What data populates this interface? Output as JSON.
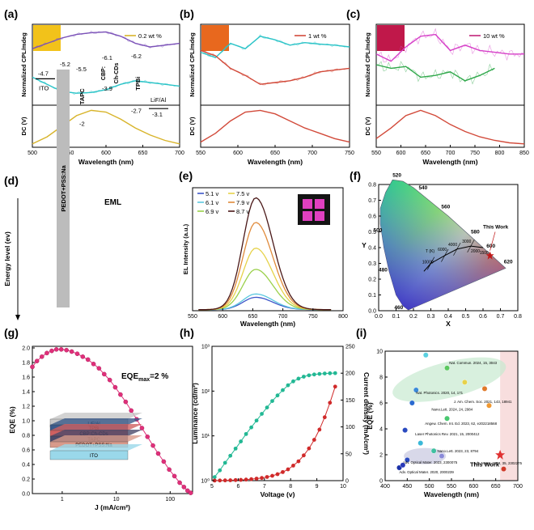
{
  "panel_labels": [
    "(a)",
    "(b)",
    "(c)",
    "(d)",
    "(e)",
    "(f)",
    "(g)",
    "(h)",
    "(i)"
  ],
  "colors": {
    "purple": "#7b52b8",
    "cyan": "#2cc4c8",
    "gold": "#d8b42a",
    "red": "#d24a3a",
    "magenta": "#d640c8",
    "green": "#2fa84a",
    "teal": "#22b894",
    "pink": "#e0307a"
  },
  "chart_data": [
    {
      "id": "a",
      "type": "line",
      "ylabel_top": "Normalized CPL/mdeg",
      "ylabel_bottom": "DC (V)",
      "xlabel": "Wavelength (nm)",
      "xlim": [
        500,
        700
      ],
      "xticks": [
        "500",
        "550",
        "600",
        "650",
        "700"
      ],
      "swatch_color": "#f2c21a",
      "series": [
        {
          "name": "0.2 wt %",
          "role": "legend",
          "color": "#d8b42a"
        },
        {
          "role": "cpl-positive",
          "color": "#7b52b8",
          "x": [
            500,
            520,
            540,
            560,
            580,
            600,
            620,
            640,
            660,
            680,
            700
          ],
          "y": [
            0.45,
            0.6,
            0.75,
            0.85,
            0.9,
            0.92,
            0.8,
            0.6,
            0.5,
            0.55,
            0.6
          ]
        },
        {
          "role": "cpl-negative",
          "color": "#2cc4c8",
          "x": [
            500,
            520,
            540,
            560,
            580,
            600,
            620,
            640,
            660,
            680,
            700
          ],
          "y": [
            -0.35,
            -0.55,
            -0.75,
            -0.8,
            -0.78,
            -0.7,
            -0.55,
            -0.45,
            -0.5,
            -0.55,
            -0.6
          ]
        },
        {
          "role": "dc",
          "color": "#d8b42a",
          "x": [
            500,
            520,
            540,
            560,
            580,
            600,
            620,
            640,
            660,
            680,
            700
          ],
          "y": [
            0.05,
            0.25,
            0.55,
            0.85,
            1.0,
            0.95,
            0.75,
            0.5,
            0.3,
            0.15,
            0.05
          ]
        }
      ]
    },
    {
      "id": "b",
      "type": "line",
      "ylabel_top": "Normalized CPL/mdeg",
      "ylabel_bottom": "DC (V)",
      "xlabel": "Wavelength (nm)",
      "xlim": [
        550,
        750
      ],
      "xticks": [
        "550",
        "600",
        "650",
        "700",
        "750"
      ],
      "swatch_color": "#e8681e",
      "series": [
        {
          "name": "1 wt %",
          "role": "legend",
          "color": "#d24a3a"
        },
        {
          "role": "cpl-positive",
          "color": "#2cc4c8",
          "x": [
            550,
            570,
            590,
            610,
            630,
            650,
            670,
            690,
            710,
            730,
            750
          ],
          "y": [
            0.35,
            0.2,
            0.6,
            0.45,
            0.8,
            0.7,
            0.55,
            0.62,
            0.58,
            0.55,
            0.5
          ]
        },
        {
          "role": "cpl-negative",
          "color": "#d24a3a",
          "x": [
            550,
            570,
            590,
            610,
            630,
            650,
            670,
            690,
            710,
            730,
            750
          ],
          "y": [
            0.4,
            0.25,
            -0.1,
            -0.3,
            -0.55,
            -0.5,
            -0.45,
            -0.35,
            -0.2,
            -0.15,
            -0.1
          ]
        },
        {
          "role": "dc",
          "color": "#d24a3a",
          "x": [
            550,
            570,
            590,
            610,
            630,
            650,
            670,
            690,
            710,
            730,
            750
          ],
          "y": [
            0.1,
            0.35,
            0.7,
            0.95,
            1.0,
            0.9,
            0.7,
            0.5,
            0.35,
            0.2,
            0.1
          ]
        }
      ]
    },
    {
      "id": "c",
      "type": "line",
      "ylabel_top": "Normalized CPL/mdeg",
      "ylabel_bottom": "DC (V)",
      "xlabel": "Wavelength (nm)",
      "xlim": [
        550,
        850
      ],
      "xticks": [
        "550",
        "600",
        "650",
        "700",
        "750",
        "800",
        "850"
      ],
      "swatch_color": "#c0184a",
      "series": [
        {
          "name": "10 wt %",
          "role": "legend",
          "color": "#c2247a"
        },
        {
          "role": "cpl-positive",
          "color": "#d640c8",
          "x": [
            550,
            580,
            610,
            640,
            670,
            700,
            730,
            760,
            790,
            820,
            850
          ],
          "y": [
            0.3,
            0.1,
            0.5,
            0.8,
            0.85,
            0.4,
            0.55,
            0.4,
            0.35,
            0.3,
            0.3
          ]
        },
        {
          "role": "cpl-negative",
          "color": "#2fa84a",
          "x": [
            550,
            580,
            610,
            640,
            670,
            700,
            730,
            760,
            790
          ],
          "y": [
            0.0,
            -0.1,
            -0.05,
            -0.35,
            -0.3,
            -0.2,
            -0.45,
            -0.3,
            -0.1
          ]
        },
        {
          "role": "dc",
          "color": "#d24a3a",
          "x": [
            550,
            580,
            610,
            640,
            670,
            700,
            730,
            760,
            790,
            820,
            850
          ],
          "y": [
            0.2,
            0.5,
            0.85,
            1.0,
            0.85,
            0.6,
            0.4,
            0.25,
            0.15,
            0.08,
            0.05
          ]
        }
      ]
    },
    {
      "id": "d",
      "type": "diagram",
      "ylabel": "Energy level (ev)",
      "layers": [
        {
          "name": "ITO",
          "top": "-4.7"
        },
        {
          "name": "PEDOT+PSS:Na",
          "top": "-5.2"
        },
        {
          "name": "TAPC",
          "top": "-2",
          "bottom": "-5.5"
        },
        {
          "name": "EML",
          "top": "-3.9",
          "bottom": "-6.1"
        },
        {
          "name": "CBP:",
          "part": "EML"
        },
        {
          "name": "Ch-CDs",
          "part": "EML"
        },
        {
          "name": "TPBi",
          "top": "-2.7",
          "bottom": "-6.2"
        },
        {
          "name": "LiF/Al",
          "top": "-3.1"
        }
      ]
    },
    {
      "id": "e",
      "type": "line",
      "ylabel": "EL Intensity (a.u.)",
      "xlabel": "Wavelength (nm)",
      "xlim": [
        550,
        800
      ],
      "xticks": [
        "550",
        "600",
        "650",
        "700",
        "750",
        "800"
      ],
      "peak": 655,
      "series": [
        {
          "name": "5.1 v",
          "color": "#3d56c8",
          "peak_height": 0.11
        },
        {
          "name": "6.1 v",
          "color": "#5cc8e0",
          "peak_height": 0.14
        },
        {
          "name": "6.9 v",
          "color": "#9ad04a",
          "peak_height": 0.36
        },
        {
          "name": "7.5 v",
          "color": "#e6d24a",
          "peak_height": 0.55
        },
        {
          "name": "7.9 v",
          "color": "#e08a3a",
          "peak_height": 0.78
        },
        {
          "name": "8.7 v",
          "color": "#4a1818",
          "peak_height": 1.0
        }
      ]
    },
    {
      "id": "f",
      "type": "scatter",
      "xlabel": "X",
      "ylabel": "Y",
      "xlim": [
        0.0,
        0.8
      ],
      "ylim": [
        0.0,
        0.8
      ],
      "xticks": [
        "0.0",
        "0.1",
        "0.2",
        "0.3",
        "0.4",
        "0.5",
        "0.6",
        "0.7",
        "0.8"
      ],
      "yticks": [
        "0.0",
        "0.1",
        "0.2",
        "0.3",
        "0.4",
        "0.5",
        "0.6",
        "0.7",
        "0.8"
      ],
      "locus_labels": [
        "520",
        "540",
        "560",
        "580",
        "600",
        "620",
        "500",
        "480",
        "460"
      ],
      "cct_labels": [
        "T (K)",
        "10000",
        "6000",
        "4000",
        "3000",
        "2000",
        "1500"
      ],
      "point": {
        "name": "This Work",
        "x": 0.64,
        "y": 0.35,
        "color": "#c01818"
      }
    },
    {
      "id": "g",
      "type": "scatter",
      "xlabel": "J (mA/cm²)",
      "ylabel": "EQE (%)",
      "xscale": "log",
      "xticks": [
        "1",
        "10",
        "100"
      ],
      "ylim": [
        0.0,
        2.0
      ],
      "yticks": [
        "0.0",
        "0.2",
        "0.4",
        "0.6",
        "0.8",
        "1.0",
        "1.2",
        "1.4",
        "1.6",
        "1.8",
        "2.0"
      ],
      "annotation": "EQE",
      "annotation_sub": "max",
      "annotation_tail": "=2 %",
      "color": "#e0307a",
      "x": [
        0.28,
        0.34,
        0.42,
        0.52,
        0.64,
        0.78,
        0.96,
        1.2,
        1.5,
        1.9,
        2.4,
        3.0,
        3.8,
        4.8,
        6,
        7.6,
        9.6,
        12,
        15,
        19,
        24,
        30,
        38,
        48,
        60,
        76,
        96,
        120,
        150,
        180,
        210,
        240
      ],
      "y": [
        1.74,
        1.82,
        1.88,
        1.93,
        1.96,
        1.98,
        1.98,
        1.97,
        1.95,
        1.92,
        1.88,
        1.84,
        1.78,
        1.72,
        1.64,
        1.56,
        1.46,
        1.36,
        1.26,
        1.14,
        1.02,
        0.9,
        0.78,
        0.66,
        0.55,
        0.44,
        0.33,
        0.24,
        0.15,
        0.09,
        0.04,
        0.01
      ],
      "stack_layers": [
        "LiF/Al",
        "TPBi",
        "CBP:Ch-CDs",
        "TAPC",
        "PEDOT+PSS:Na",
        "ITO"
      ]
    },
    {
      "id": "h",
      "type": "scatter",
      "xlabel": "Voltage (v)",
      "xlim": [
        5,
        10
      ],
      "xticks": [
        "5",
        "6",
        "7",
        "8",
        "9",
        "10"
      ],
      "ylabel_left": "Luminance (cd/m²)",
      "yscale_left": "log",
      "yticks_left": [
        "10⁰",
        "10¹",
        "10²",
        "10³"
      ],
      "ylabel_right": "Current density (mA/cm²)",
      "ylim_right": [
        0,
        250
      ],
      "yticks_right": [
        "0",
        "50",
        "100",
        "150",
        "200",
        "250"
      ],
      "series": [
        {
          "name": "Luminance",
          "color": "#22b894",
          "x": [
            5.1,
            5.3,
            5.5,
            5.7,
            5.9,
            6.1,
            6.3,
            6.5,
            6.7,
            6.9,
            7.1,
            7.3,
            7.5,
            7.7,
            7.9,
            8.1,
            8.3,
            8.5,
            8.7,
            8.9,
            9.1,
            9.3,
            9.5,
            9.7
          ],
          "y": [
            1.2,
            1.7,
            2.5,
            3.6,
            5.2,
            7.5,
            11,
            15.5,
            22,
            31,
            43,
            60,
            80,
            105,
            135,
            165,
            190,
            210,
            225,
            235,
            242,
            247,
            250,
            252
          ]
        },
        {
          "name": "Current density",
          "color": "#d02a2a",
          "x": [
            5.1,
            5.3,
            5.5,
            5.7,
            5.9,
            6.1,
            6.3,
            6.5,
            6.7,
            6.9,
            7.1,
            7.3,
            7.5,
            7.7,
            7.9,
            8.1,
            8.3,
            8.5,
            8.7,
            8.9,
            9.1,
            9.3,
            9.5,
            9.7
          ],
          "y": [
            0.2,
            0.3,
            0.5,
            0.7,
            1,
            1.4,
            2,
            2.8,
            3.8,
            5,
            6.8,
            9,
            12,
            16,
            21,
            28,
            36,
            47,
            60,
            76,
            95,
            118,
            145,
            175
          ]
        }
      ]
    },
    {
      "id": "i",
      "type": "scatter",
      "xlabel": "Wavelength (nm)",
      "ylabel": "EQE (%)",
      "xlim": [
        400,
        700
      ],
      "ylim": [
        0,
        10
      ],
      "xticks": [
        "400",
        "450",
        "500",
        "550",
        "600",
        "650",
        "700"
      ],
      "yticks": [
        "0",
        "2",
        "4",
        "6",
        "8",
        "10"
      ],
      "highlight": {
        "name": "This Work",
        "x": 660,
        "y": 2.0,
        "color": "#e03030"
      },
      "points": [
        {
          "x": 492,
          "y": 9.7,
          "color": "#5ad0e0",
          "label": "Nat. Commun. 2024, 15, 3043"
        },
        {
          "x": 540,
          "y": 8.7,
          "color": "#5cc860"
        },
        {
          "x": 470,
          "y": 7.0,
          "color": "#3a8ad8"
        },
        {
          "x": 580,
          "y": 7.6,
          "color": "#e6d24a"
        },
        {
          "x": 625,
          "y": 7.1,
          "color": "#e07a2a"
        },
        {
          "x": 461,
          "y": 6.0,
          "color": "#2a6ad0",
          "label": "Nat. Photonics. 2020, 14, 171"
        },
        {
          "x": 635,
          "y": 5.8,
          "color": "#f09830",
          "label": "J. Am. Chem. Soc. 2021, 143, 18941"
        },
        {
          "x": 540,
          "y": 4.8,
          "color": "#4ac870",
          "label": "Nano.Lett. 2024, 24, 2984"
        },
        {
          "x": 445,
          "y": 3.9,
          "color": "#2a4ac0",
          "label": "Angew. Chem. Int. Ed. 2023, 62, e202218568"
        },
        {
          "x": 480,
          "y": 2.9,
          "color": "#3ab8d8",
          "label": "Laser Photonics Rev. 2021, 15, 2000412"
        },
        {
          "x": 510,
          "y": 2.3,
          "color": "#40c0a0",
          "label": "Nano.Lett. 2023, 23, 8794"
        },
        {
          "x": 528,
          "y": 1.9,
          "color": "#8a8ad8"
        },
        {
          "x": 450,
          "y": 1.6,
          "color": "#2a4ac0",
          "label": "Adv. Optical Mater. 2023, 2300075"
        },
        {
          "x": 432,
          "y": 1.0,
          "color": "#1a30a8",
          "label": "Adv. Optical Mater. 2020, 2000239"
        },
        {
          "x": 440,
          "y": 1.2,
          "color": "#2a3ab8"
        },
        {
          "x": 668,
          "y": 0.9,
          "color": "#d03a2a",
          "label": "Adv. Mater. 2023, 35, 2302275"
        }
      ]
    }
  ]
}
